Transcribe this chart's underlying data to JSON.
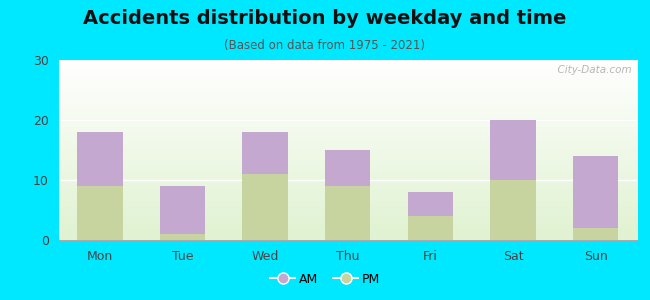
{
  "title": "Accidents distribution by weekday and time",
  "subtitle": "(Based on data from 1975 - 2021)",
  "categories": [
    "Mon",
    "Tue",
    "Wed",
    "Thu",
    "Fri",
    "Sat",
    "Sun"
  ],
  "pm_values": [
    9,
    1,
    11,
    9,
    4,
    10,
    2
  ],
  "am_values": [
    9,
    8,
    7,
    6,
    4,
    10,
    12
  ],
  "am_color": "#c5a8d0",
  "pm_color": "#c8d4a0",
  "background_outer": "#00e8ff",
  "ylim": [
    0,
    30
  ],
  "yticks": [
    0,
    10,
    20,
    30
  ],
  "watermark": "  City-Data.com",
  "legend_am": "AM",
  "legend_pm": "PM",
  "title_fontsize": 14,
  "subtitle_fontsize": 8.5,
  "tick_fontsize": 9
}
